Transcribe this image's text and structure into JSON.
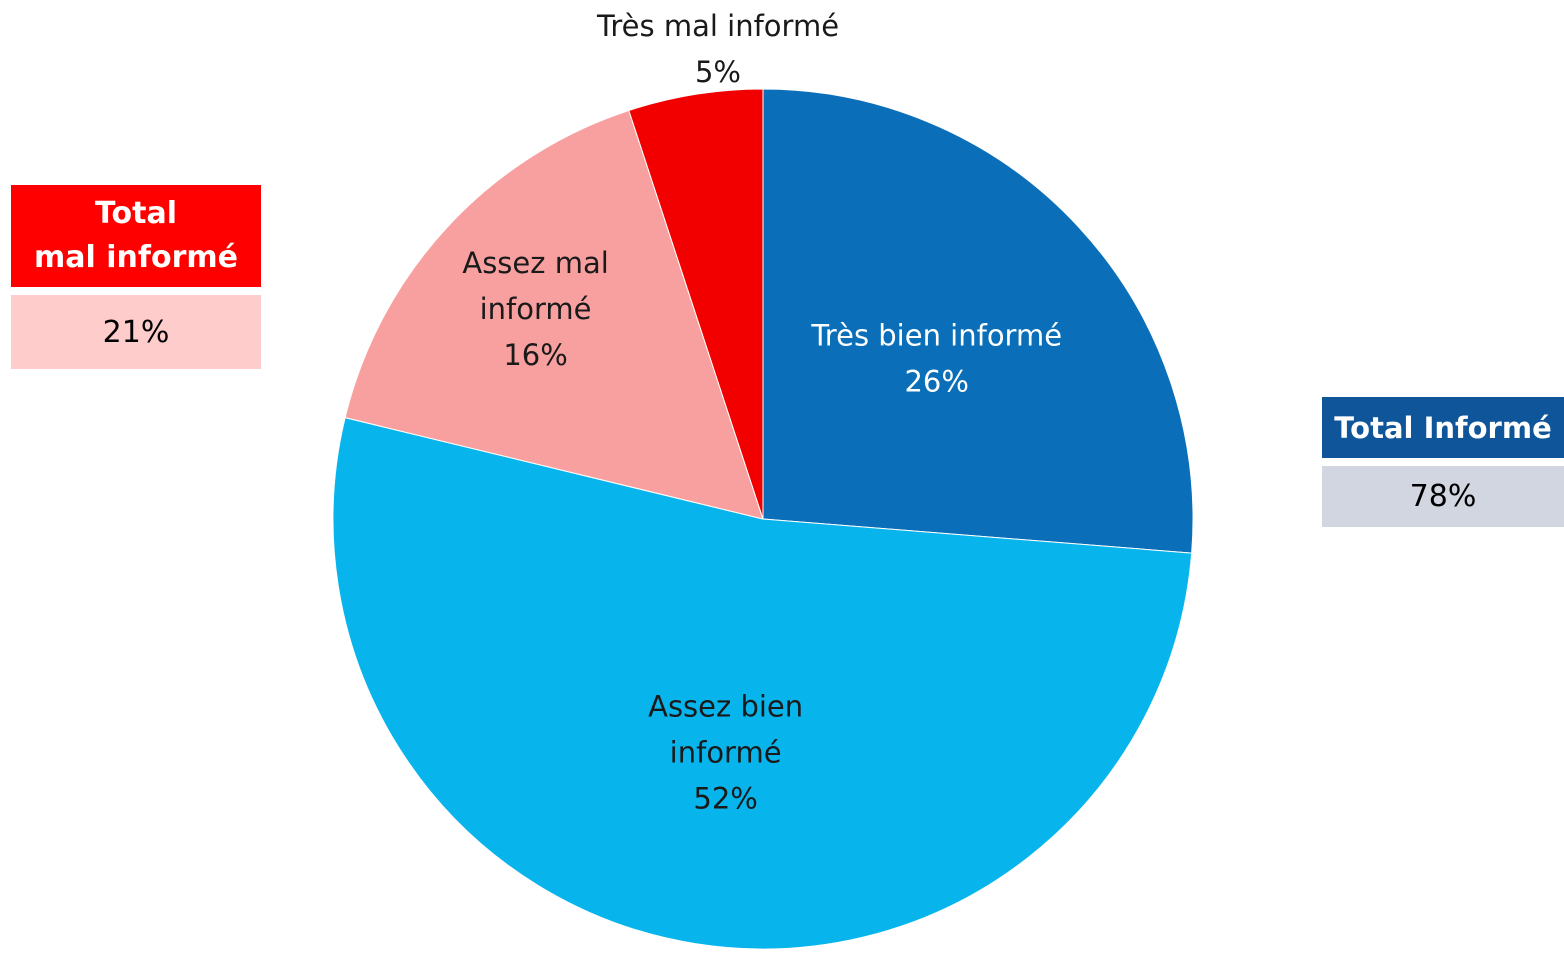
{
  "chart_data": {
    "type": "pie",
    "slices": [
      {
        "label": "Très bien informé",
        "value": 26,
        "value_label": "26%",
        "color": "#0A6FB8",
        "text_color": "#ffffff"
      },
      {
        "label": "Assez bien informé",
        "value": 52,
        "value_label": "52%",
        "color": "#08B4EC",
        "text_color": "#1a1a1a"
      },
      {
        "label": "Assez mal informé",
        "value": 16,
        "value_label": "16%",
        "color": "#F8A0A0",
        "text_color": "#1a1a1a"
      },
      {
        "label": "Très mal informé",
        "value": 5,
        "value_label": "5%",
        "color": "#F20000",
        "text_color": "#1a1a1a"
      }
    ],
    "start": "12 o'clock",
    "direction": "clockwise"
  },
  "totals": {
    "mal": {
      "title": "Total\nmal informé",
      "value": "21%",
      "head_color": "#FF0000",
      "value_color": "#FFCCCC"
    },
    "informe": {
      "title": "Total Informé",
      "value": "78%",
      "head_color": "#0E5599",
      "value_color": "#D2D6E0"
    }
  }
}
